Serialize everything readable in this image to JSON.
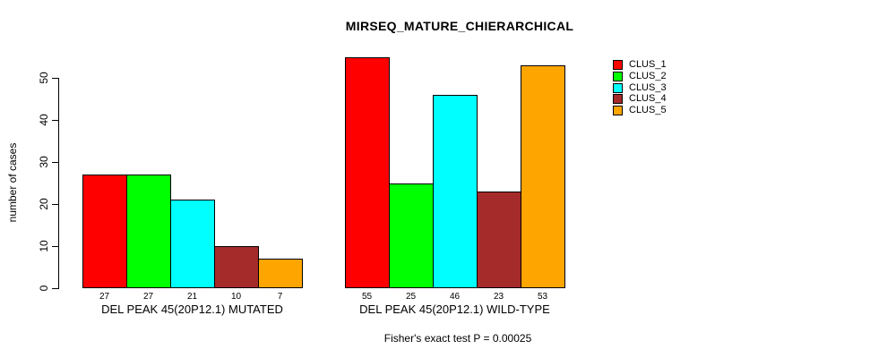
{
  "chart_data": {
    "type": "bar",
    "title": "MIRSEQ_MATURE_CHIERARCHICAL",
    "subtitle": "Fisher's exact test P = 0.00025",
    "xlabel": "",
    "ylabel": "number of cases",
    "ylim": [
      0,
      57
    ],
    "yticks": [
      0,
      10,
      20,
      30,
      40,
      50
    ],
    "grid": false,
    "bar_value_labels": true,
    "legend_position": "top-right",
    "categories": [
      "DEL PEAK 45(20P12.1) MUTATED",
      "DEL PEAK 45(20P12.1) WILD-TYPE"
    ],
    "series": [
      {
        "name": "CLUS_1",
        "color": "#FF0000",
        "values": [
          27,
          55
        ]
      },
      {
        "name": "CLUS_2",
        "color": "#00FF00",
        "values": [
          27,
          25
        ]
      },
      {
        "name": "CLUS_3",
        "color": "#00FFFF",
        "values": [
          21,
          46
        ]
      },
      {
        "name": "CLUS_4",
        "color": "#A52A2A",
        "values": [
          10,
          23
        ]
      },
      {
        "name": "CLUS_5",
        "color": "#FFA500",
        "values": [
          7,
          53
        ]
      }
    ],
    "colors": {
      "background": "#FFFFFF",
      "axis": "#000000",
      "text": "#000000"
    }
  }
}
